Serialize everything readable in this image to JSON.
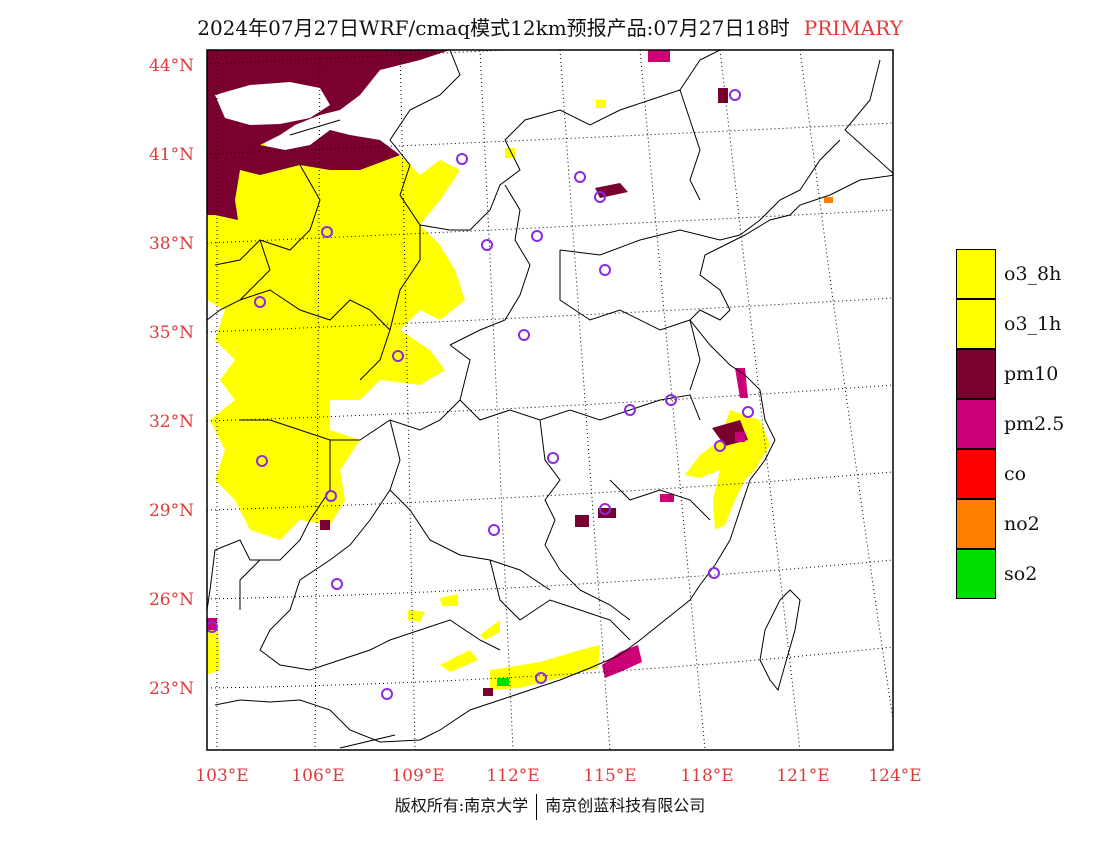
{
  "title": {
    "main": "2024年07月27日WRF/cmaq模式12km预报产品:07月27日18时",
    "primary": "PRIMARY"
  },
  "axes": {
    "lat_labels": [
      "44°N",
      "41°N",
      "38°N",
      "35°N",
      "32°N",
      "29°N",
      "26°N",
      "23°N"
    ],
    "lon_labels": [
      "103°E",
      "106°E",
      "109°E",
      "112°E",
      "115°E",
      "118°E",
      "121°E",
      "124°E"
    ]
  },
  "legend": [
    {
      "label": "o3_8h",
      "color": "#ffff00"
    },
    {
      "label": "o3_1h",
      "color": "#ffff00"
    },
    {
      "label": "pm10",
      "color": "#7a0030"
    },
    {
      "label": "pm2.5",
      "color": "#cc0077"
    },
    {
      "label": "co",
      "color": "#ff0000"
    },
    {
      "label": "no2",
      "color": "#ff7f00"
    },
    {
      "label": "so2",
      "color": "#00dd00"
    }
  ],
  "footer": {
    "left": "版权所有:南京大学",
    "right": "南京创蓝科技有限公司"
  }
}
